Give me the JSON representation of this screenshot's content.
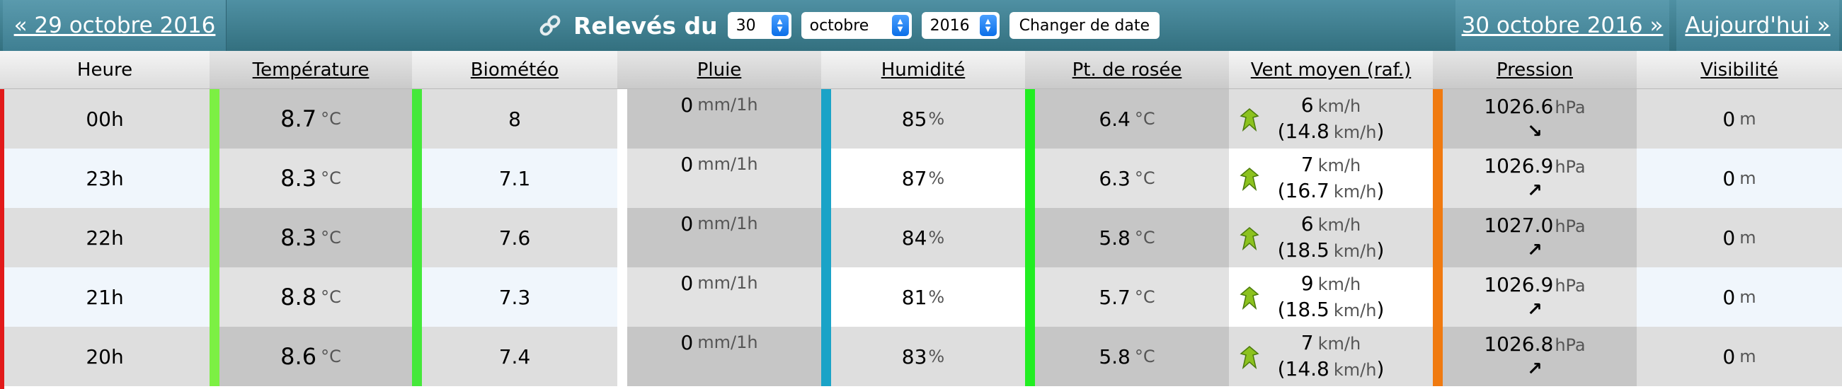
{
  "nav": {
    "prev_label": "« 29 octobre 2016",
    "next_label": "30 octobre 2016 »",
    "today_label": "Aujourd'hui »"
  },
  "form": {
    "title": "Relevés du",
    "day": "30",
    "month": "octobre",
    "year": "2016",
    "submit_label": "Changer de date"
  },
  "columns": [
    {
      "label": "Heure",
      "underline": false
    },
    {
      "label": "Température",
      "underline": true
    },
    {
      "label": "Biométéo",
      "underline": true
    },
    {
      "label": "Pluie",
      "underline": true
    },
    {
      "label": "Humidité",
      "underline": true
    },
    {
      "label": "Pt. de rosée",
      "underline": true
    },
    {
      "label": "Vent moyen (raf.)",
      "underline": true
    },
    {
      "label": "Pression",
      "underline": true
    },
    {
      "label": "Visibilité",
      "underline": true
    }
  ],
  "units": {
    "temp": "°C",
    "rain": "mm/1h",
    "humidity": "%",
    "wind": "km/h",
    "pressure": "hPa",
    "visibility": "m"
  },
  "colors": {
    "temp_bar": "#7cf043",
    "bio_bar": "#45e83a",
    "rain_bar": "#ffffff",
    "humidity_bar": "#1aa3c7",
    "dew_bar": "#22ee22",
    "pressure_bar": "#f07a10",
    "row_line": "#e21a1a"
  },
  "rows": [
    {
      "hour": "00h",
      "temp": "8.7",
      "bio": "8",
      "rain": "0",
      "humidity": "85",
      "dew": "6.4",
      "wind": "6",
      "gust": "14.8",
      "wind_dir_icon": "wind-arrow-icon",
      "pressure": "1026.6",
      "trend_icon": "arrow-down-right-icon",
      "trend": "↘",
      "visibility": "0"
    },
    {
      "hour": "23h",
      "temp": "8.3",
      "bio": "7.1",
      "rain": "0",
      "humidity": "87",
      "dew": "6.3",
      "wind": "7",
      "gust": "16.7",
      "wind_dir_icon": "wind-arrow-icon",
      "pressure": "1026.9",
      "trend_icon": "arrow-up-right-icon",
      "trend": "↗",
      "visibility": "0"
    },
    {
      "hour": "22h",
      "temp": "8.3",
      "bio": "7.6",
      "rain": "0",
      "humidity": "84",
      "dew": "5.8",
      "wind": "6",
      "gust": "18.5",
      "wind_dir_icon": "wind-arrow-icon",
      "pressure": "1027.0",
      "trend_icon": "arrow-up-right-icon",
      "trend": "↗",
      "visibility": "0"
    },
    {
      "hour": "21h",
      "temp": "8.8",
      "bio": "7.3",
      "rain": "0",
      "humidity": "81",
      "dew": "5.7",
      "wind": "9",
      "gust": "18.5",
      "wind_dir_icon": "wind-arrow-icon",
      "pressure": "1026.9",
      "trend_icon": "arrow-up-right-icon",
      "trend": "↗",
      "visibility": "0"
    },
    {
      "hour": "20h",
      "temp": "8.6",
      "bio": "7.4",
      "rain": "0",
      "humidity": "83",
      "dew": "5.8",
      "wind": "7",
      "gust": "14.8",
      "wind_dir_icon": "wind-arrow-icon",
      "pressure": "1026.8",
      "trend_icon": "arrow-up-right-icon",
      "trend": "↗",
      "visibility": "0"
    }
  ]
}
